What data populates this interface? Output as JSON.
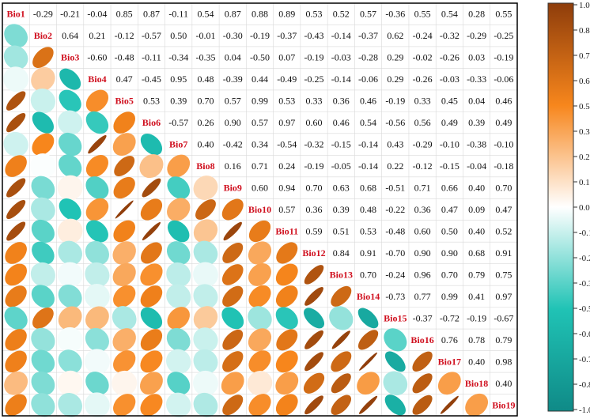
{
  "chart_data": {
    "type": "heatmap",
    "variables": [
      "Bio1",
      "Bio2",
      "Bio3",
      "Bio4",
      "Bio5",
      "Bio6",
      "Bio7",
      "Bio8",
      "Bio9",
      "Bio10",
      "Bio11",
      "Bio12",
      "Bio13",
      "Bio14",
      "Bio15",
      "Bio16",
      "Bio17",
      "Bio18",
      "Bio19"
    ],
    "upper_labels": [
      [
        "",
        "-0.29",
        "-0.21",
        "-0.04",
        "0.85",
        "0.87",
        "-0.11",
        "0.54",
        "0.87",
        "0.88",
        "0.89",
        "0.53",
        "0.52",
        "0.57",
        "-0.36",
        "0.55",
        "0.54",
        "0.28",
        "0.55"
      ],
      [
        "",
        "",
        "0.64",
        "0.21",
        "-0.12",
        "-0.57",
        "0.50",
        "-0.01",
        "-0.30",
        "-0.19",
        "-0.37",
        "-0.43",
        "-0.14",
        "-0.37",
        "0.62",
        "-0.24",
        "-0.32",
        "-0.29",
        "-0.25"
      ],
      [
        "",
        "",
        "",
        "-0.60",
        "-0.48",
        "-0.11",
        "-0.34",
        "-0.35",
        "0.04",
        "-0.50",
        "0.07",
        "-0.19",
        "-0.03",
        "-0.28",
        "0.29",
        "-0.02",
        "-0.26",
        "0.03",
        "-0.19"
      ],
      [
        "",
        "",
        "",
        "",
        "0.47",
        "-0.45",
        "0.95",
        "0.48",
        "-0.39",
        "0.44",
        "-0.49",
        "-0.25",
        "-0.14",
        "-0.06",
        "0.29",
        "-0.26",
        "-0.03",
        "-0.33",
        "-0.06"
      ],
      [
        "",
        "",
        "",
        "",
        "",
        "0.53",
        "0.39",
        "0.70",
        "0.57",
        "0.99",
        "0.53",
        "0.33",
        "0.36",
        "0.46",
        "-0.19",
        "0.33",
        "0.45",
        "0.04",
        "0.46"
      ],
      [
        "",
        "",
        "",
        "",
        "",
        "",
        "-0.57",
        "0.26",
        "0.90",
        "0.57",
        "0.97",
        "0.60",
        "0.46",
        "0.54",
        "-0.56",
        "0.56",
        "0.49",
        "0.39",
        "0.49"
      ],
      [
        "",
        "",
        "",
        "",
        "",
        "",
        "",
        "0.40",
        "-0.42",
        "0.34",
        "-0.54",
        "-0.32",
        "-0.15",
        "-0.14",
        "0.43",
        "-0.29",
        "-0.10",
        "-0.38",
        "-0.10"
      ],
      [
        "",
        "",
        "",
        "",
        "",
        "",
        "",
        "",
        "0.16",
        "0.71",
        "0.24",
        "-0.19",
        "-0.05",
        "-0.14",
        "0.22",
        "-0.12",
        "-0.15",
        "-0.04",
        "-0.18"
      ],
      [
        "",
        "",
        "",
        "",
        "",
        "",
        "",
        "",
        "",
        "0.60",
        "0.94",
        "0.70",
        "0.63",
        "0.68",
        "-0.51",
        "0.71",
        "0.66",
        "0.40",
        "0.70"
      ],
      [
        "",
        "",
        "",
        "",
        "",
        "",
        "",
        "",
        "",
        "",
        "0.57",
        "0.36",
        "0.39",
        "0.48",
        "-0.22",
        "0.36",
        "0.47",
        "0.09",
        "0.47"
      ],
      [
        "",
        "",
        "",
        "",
        "",
        "",
        "",
        "",
        "",
        "",
        "",
        "0.59",
        "0.51",
        "0.53",
        "-0.48",
        "0.60",
        "0.50",
        "0.40",
        "0.52"
      ],
      [
        "",
        "",
        "",
        "",
        "",
        "",
        "",
        "",
        "",
        "",
        "",
        "",
        "0.84",
        "0.91",
        "-0.70",
        "0.90",
        "0.90",
        "0.68",
        "0.91"
      ],
      [
        "",
        "",
        "",
        "",
        "",
        "",
        "",
        "",
        "",
        "",
        "",
        "",
        "",
        "0.70",
        "-0.24",
        "0.96",
        "0.70",
        "0.79",
        "0.75"
      ],
      [
        "",
        "",
        "",
        "",
        "",
        "",
        "",
        "",
        "",
        "",
        "",
        "",
        "",
        "",
        "-0.73",
        "0.77",
        "0.99",
        "0.41",
        "0.97"
      ],
      [
        "",
        "",
        "",
        "",
        "",
        "",
        "",
        "",
        "",
        "",
        "",
        "",
        "",
        "",
        "",
        "-0.37",
        "-0.72",
        "-0.19",
        "-0.67"
      ],
      [
        "",
        "",
        "",
        "",
        "",
        "",
        "",
        "",
        "",
        "",
        "",
        "",
        "",
        "",
        "",
        "",
        "0.76",
        "0.78",
        "0.79"
      ],
      [
        "",
        "",
        "",
        "",
        "",
        "",
        "",
        "",
        "",
        "",
        "",
        "",
        "",
        "",
        "",
        "",
        "",
        "0.40",
        "0.98"
      ],
      [
        "",
        "",
        "",
        "",
        "",
        "",
        "",
        "",
        "",
        "",
        "",
        "",
        "",
        "",
        "",
        "",
        "",
        "",
        "0.40"
      ],
      [
        "",
        "",
        "",
        "",
        "",
        "",
        "",
        "",
        "",
        "",
        "",
        "",
        "",
        "",
        "",
        "",
        "",
        "",
        ""
      ]
    ],
    "legend": {
      "ticks": [
        "1.0",
        "0.88",
        "0.75",
        "0.63",
        "0.50",
        "0.38",
        "0.25",
        "0.13",
        "0.0",
        "-0.13",
        "-0.25",
        "-0.38",
        "-0.50",
        "-0.63",
        "-0.75",
        "-0.88",
        "-1.0"
      ],
      "range": [
        -1,
        1
      ],
      "placement": "right"
    },
    "colors": {
      "negative_end": "#0f8a87",
      "negative_mid": "#20c3b5",
      "neutral": "#ffffff",
      "positive_mid": "#f7861c",
      "positive_end": "#8e3d0b",
      "label": "#d0101f"
    },
    "lower_triangle": "ellipses",
    "upper_triangle": "numbers",
    "grid": true
  }
}
